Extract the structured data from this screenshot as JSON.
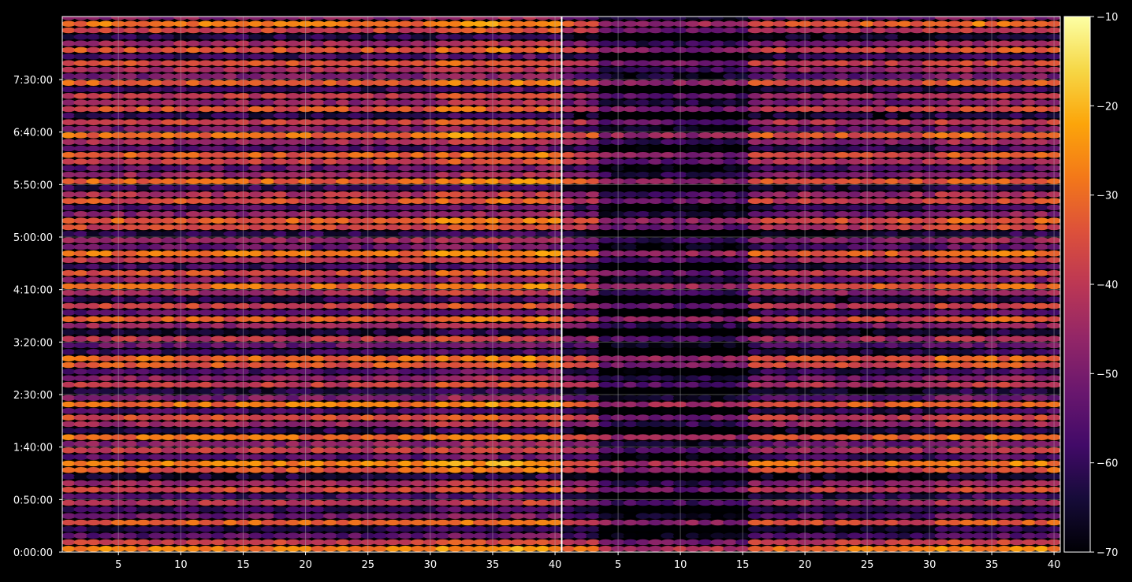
{
  "chart_data": {
    "type": "heatmap",
    "title": "",
    "xlabel": "",
    "ylabel": "",
    "panels": [
      {
        "name": "",
        "xlim": [
          1,
          40
        ],
        "x_ticks": [
          5,
          10,
          15,
          20,
          25,
          30,
          35,
          40
        ]
      },
      {
        "name": "",
        "xlim": [
          1,
          40
        ],
        "x_ticks": [
          5,
          10,
          15,
          20,
          25,
          30,
          35,
          40
        ]
      }
    ],
    "y_axis": {
      "ylim_seconds": [
        0,
        30600
      ],
      "ticks": [
        {
          "label": "0:00:00",
          "seconds": 0
        },
        {
          "label": "0:50:00",
          "seconds": 3000
        },
        {
          "label": "1:40:00",
          "seconds": 6000
        },
        {
          "label": "2:30:00",
          "seconds": 9000
        },
        {
          "label": "3:20:00",
          "seconds": 12000
        },
        {
          "label": "4:10:00",
          "seconds": 15000
        },
        {
          "label": "5:00:00",
          "seconds": 18000
        },
        {
          "label": "5:50:00",
          "seconds": 21000
        },
        {
          "label": "6:40:00",
          "seconds": 24000
        },
        {
          "label": "7:30:00",
          "seconds": 27000
        }
      ]
    },
    "colorbar": {
      "range": [
        -70,
        -10
      ],
      "ticks": [
        -70,
        -60,
        -50,
        -40,
        -30,
        -20,
        -10
      ],
      "colormap": "inferno"
    },
    "grid": true,
    "row_step_seconds": 375,
    "approx_row_levels_panel1": [
      -28,
      -38,
      -55,
      -62,
      -32,
      -52,
      -60,
      -42,
      -58,
      -36,
      -45,
      -64,
      -33,
      -27,
      -55,
      -40,
      -48,
      -30,
      -62,
      -44,
      -36,
      -58,
      -29,
      -50,
      -63,
      -39,
      -47,
      -57,
      -34,
      -31,
      -60,
      -52,
      -41,
      -64,
      -46,
      -33,
      -55,
      -38,
      -61,
      -43,
      -30,
      -49,
      -36,
      -58,
      -40,
      -29,
      -53,
      -45,
      -62,
      -37,
      -32,
      -48,
      -56,
      -35,
      -42,
      -60,
      -31,
      -46,
      -54,
      -39,
      -33,
      -57,
      -44,
      -30,
      -51,
      -38,
      -61,
      -35,
      -47,
      -40,
      -59,
      -32,
      -50,
      -43,
      -36,
      -58,
      -34,
      -45,
      -62,
      -37,
      -29,
      -48,
      -41,
      -55
    ],
    "approx_row_levels_panel2": [
      -30,
      -40,
      -58,
      -65,
      -36,
      -56,
      -64,
      -46,
      -62,
      -40,
      -49,
      -67,
      -37,
      -31,
      -59,
      -44,
      -52,
      -34,
      -66,
      -48,
      -40,
      -62,
      -33,
      -54,
      -67,
      -43,
      -51,
      -61,
      -38,
      -35,
      -64,
      -56,
      -45,
      -68,
      -50,
      -37,
      -59,
      -42,
      -65,
      -47,
      -34,
      -53,
      -40,
      -62,
      -44,
      -33,
      -57,
      -49,
      -66,
      -41,
      -36,
      -52,
      -60,
      -39,
      -46,
      -64,
      -35,
      -50,
      -58,
      -43,
      -37,
      -61,
      -48,
      -34,
      -55,
      -42,
      -65,
      -39,
      -51,
      -44,
      -63,
      -36,
      -54,
      -47,
      -40,
      -62,
      -38,
      -49,
      -66,
      -41,
      -33,
      -52,
      -45,
      -59
    ]
  }
}
